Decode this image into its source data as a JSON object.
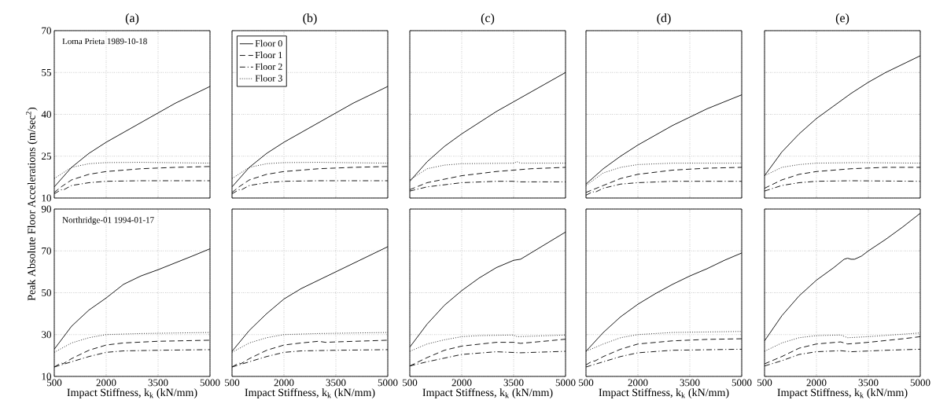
{
  "chart_data": [
    {
      "type": "line",
      "title": "(a)",
      "annotations": [
        "Loma Prieta 1989-10-18"
      ],
      "xlim": [
        500,
        5000
      ],
      "ylim": [
        10,
        70
      ],
      "xticks": [
        500,
        2000,
        3500,
        5000
      ],
      "yticks": [
        10,
        25,
        40,
        55,
        70
      ],
      "grid": true,
      "tick_labels": "y",
      "series": [
        {
          "color": "#000000",
          "line_style": "solid",
          "x": [
            500,
            1000,
            1500,
            2000,
            2500,
            3000,
            3500,
            4000,
            4500,
            5000
          ],
          "values": [
            14,
            21,
            26,
            30,
            33.5,
            37,
            40.5,
            44,
            47,
            50
          ]
        },
        {
          "color": "#000000",
          "line_style": "dashed",
          "x": [
            500,
            700,
            1000,
            1500,
            2000,
            3000,
            4000,
            5000
          ],
          "values": [
            12,
            14,
            16.5,
            18.5,
            19.5,
            20.5,
            21,
            21.3
          ]
        },
        {
          "color": "#000000",
          "line_style": "dashdot",
          "x": [
            500,
            700,
            750,
            1000,
            1500,
            2000,
            3000,
            5000
          ],
          "values": [
            11.5,
            13,
            12.8,
            14.5,
            15.5,
            16,
            16.2,
            16.2
          ]
        },
        {
          "color": "#000000",
          "line_style": "dotted",
          "x": [
            500,
            750,
            1000,
            1500,
            2000,
            3000,
            5000
          ],
          "values": [
            17,
            19,
            21,
            22.3,
            22.7,
            22.8,
            22.5
          ]
        }
      ]
    },
    {
      "type": "line",
      "title": "(b)",
      "xlim": [
        500,
        5000
      ],
      "ylim": [
        10,
        70
      ],
      "xticks": [
        500,
        2000,
        3500,
        5000
      ],
      "yticks": [
        10,
        25,
        40,
        55,
        70
      ],
      "grid": true,
      "tick_labels": false,
      "legend": "top left",
      "series": [
        {
          "name": "Floor 0",
          "color": "#000000",
          "line_style": "solid",
          "x": [
            500,
            1000,
            1500,
            2000,
            2500,
            3000,
            3500,
            4000,
            4500,
            5000
          ],
          "values": [
            14,
            21,
            26,
            30,
            33.5,
            37,
            40.5,
            44,
            47,
            50
          ]
        },
        {
          "name": "Floor 1",
          "color": "#000000",
          "line_style": "dashed",
          "x": [
            500,
            700,
            1000,
            1500,
            2000,
            3000,
            4000,
            5000
          ],
          "values": [
            12,
            14,
            16.5,
            18.5,
            19.5,
            20.5,
            21,
            21.3
          ]
        },
        {
          "name": "Floor 2",
          "color": "#000000",
          "line_style": "dashdot",
          "x": [
            500,
            700,
            750,
            1000,
            1500,
            2000,
            3000,
            5000
          ],
          "values": [
            11.5,
            13,
            12.8,
            14.5,
            15.5,
            16,
            16.2,
            16.2
          ]
        },
        {
          "name": "Floor 3",
          "color": "#000000",
          "line_style": "dotted",
          "x": [
            500,
            750,
            1000,
            1500,
            2000,
            3000,
            5000
          ],
          "values": [
            17,
            19,
            21,
            22.3,
            22.7,
            22.8,
            22.5
          ]
        }
      ]
    },
    {
      "type": "line",
      "title": "(c)",
      "xlim": [
        500,
        5000
      ],
      "ylim": [
        10,
        70
      ],
      "xticks": [
        500,
        2000,
        3500,
        5000
      ],
      "yticks": [
        10,
        25,
        40,
        55,
        70
      ],
      "grid": true,
      "tick_labels": false,
      "series": [
        {
          "color": "#000000",
          "line_style": "solid",
          "x": [
            500,
            1000,
            1500,
            2000,
            2500,
            3000,
            3500,
            4000,
            4500,
            5000
          ],
          "values": [
            16,
            23,
            28.5,
            33,
            37,
            41,
            44.5,
            48,
            51.5,
            55
          ]
        },
        {
          "color": "#000000",
          "line_style": "dashed",
          "x": [
            500,
            1000,
            2000,
            3000,
            4000,
            5000
          ],
          "values": [
            13,
            15.5,
            18,
            19.5,
            20.5,
            21
          ]
        },
        {
          "color": "#000000",
          "line_style": "dashdot",
          "x": [
            500,
            1000,
            2000,
            3000,
            3500,
            3700,
            5000
          ],
          "values": [
            12.5,
            14,
            15.5,
            16,
            16,
            15.8,
            15.8
          ]
        },
        {
          "color": "#000000",
          "line_style": "dotted",
          "x": [
            500,
            1000,
            1500,
            2000,
            3500,
            3600,
            3700,
            5000
          ],
          "values": [
            16.5,
            20.5,
            21.8,
            22.3,
            22.5,
            23,
            22.5,
            22.5
          ]
        }
      ]
    },
    {
      "type": "line",
      "title": "(d)",
      "xlim": [
        500,
        5000
      ],
      "ylim": [
        10,
        70
      ],
      "xticks": [
        500,
        2000,
        3500,
        5000
      ],
      "yticks": [
        10,
        25,
        40,
        55,
        70
      ],
      "grid": true,
      "tick_labels": false,
      "series": [
        {
          "color": "#000000",
          "line_style": "solid",
          "x": [
            500,
            1000,
            1500,
            2000,
            2500,
            3000,
            3500,
            4000,
            4500,
            5000
          ],
          "values": [
            15,
            20.5,
            25,
            29,
            32.5,
            36,
            39,
            42,
            44.5,
            47
          ]
        },
        {
          "color": "#000000",
          "line_style": "dashed",
          "x": [
            500,
            1000,
            1500,
            2000,
            3000,
            4000,
            5000
          ],
          "values": [
            12,
            14.5,
            17,
            18.5,
            20,
            20.7,
            21
          ]
        },
        {
          "color": "#000000",
          "line_style": "dashdot",
          "x": [
            500,
            700,
            750,
            1000,
            1500,
            2000,
            3000,
            5000
          ],
          "values": [
            11,
            12.3,
            12,
            13.5,
            15,
            15.5,
            16,
            16
          ]
        },
        {
          "color": "#000000",
          "line_style": "dotted",
          "x": [
            500,
            1000,
            1500,
            2000,
            3000,
            5000
          ],
          "values": [
            14.5,
            19,
            21,
            22,
            22.5,
            22.5
          ]
        }
      ]
    },
    {
      "type": "line",
      "title": "(e)",
      "xlim": [
        500,
        5000
      ],
      "ylim": [
        10,
        70
      ],
      "xticks": [
        500,
        2000,
        3500,
        5000
      ],
      "yticks": [
        10,
        25,
        40,
        55,
        70
      ],
      "grid": true,
      "tick_labels": false,
      "series": [
        {
          "color": "#000000",
          "line_style": "solid",
          "x": [
            500,
            1000,
            1500,
            2000,
            2500,
            3000,
            3500,
            4000,
            4500,
            5000
          ],
          "values": [
            18,
            26.5,
            33,
            38.5,
            43,
            47.5,
            51.5,
            55,
            58,
            61
          ]
        },
        {
          "color": "#000000",
          "line_style": "dashed",
          "x": [
            500,
            1000,
            1500,
            2000,
            3000,
            4000,
            5000
          ],
          "values": [
            13.5,
            16.5,
            18.5,
            19.5,
            20.5,
            21,
            21
          ]
        },
        {
          "color": "#000000",
          "line_style": "dashdot",
          "x": [
            500,
            1000,
            1500,
            2000,
            3000,
            5000
          ],
          "values": [
            12.5,
            14.5,
            15.5,
            16,
            16.2,
            16
          ]
        },
        {
          "color": "#000000",
          "line_style": "dotted",
          "x": [
            500,
            1000,
            1500,
            2000,
            3200,
            5000
          ],
          "values": [
            18,
            21,
            22,
            22.5,
            22.7,
            22.5
          ]
        }
      ]
    },
    {
      "type": "line",
      "ylabel": "Peak Absolute Floor Accelerations (m/sec$^{2}$)",
      "xlabel": "Impact Stiffness, k$_{k}$ (kN/mm)",
      "annotations": [
        "Northridge-01 1994-01-17"
      ],
      "xlim": [
        500,
        5000
      ],
      "ylim": [
        10,
        90
      ],
      "xticks": [
        500,
        2000,
        3500,
        5000
      ],
      "yticks": [
        10,
        30,
        50,
        70,
        90
      ],
      "grid": true,
      "series": [
        {
          "color": "#000000",
          "line_style": "solid",
          "x": [
            500,
            1000,
            1500,
            2000,
            2500,
            3000,
            3500,
            4000,
            4500,
            5000
          ],
          "values": [
            23,
            34,
            41.7,
            47.5,
            54,
            58,
            61,
            64.3,
            67.6,
            71
          ]
        },
        {
          "color": "#000000",
          "line_style": "dashed",
          "x": [
            500,
            700,
            750,
            1000,
            1500,
            2000,
            2500,
            3500,
            5000
          ],
          "values": [
            14.5,
            16.5,
            16,
            18.5,
            22.5,
            25,
            26,
            26.8,
            27.3
          ]
        },
        {
          "color": "#000000",
          "line_style": "dashdot",
          "x": [
            500,
            1000,
            1500,
            2000,
            2500,
            3500,
            5000
          ],
          "values": [
            14.5,
            17,
            19.5,
            21.5,
            22.2,
            22.5,
            22.8
          ]
        },
        {
          "color": "#000000",
          "line_style": "dotted",
          "x": [
            500,
            1000,
            1500,
            2000,
            3000,
            5000
          ],
          "values": [
            21.5,
            26,
            28.5,
            30,
            30.5,
            31
          ]
        }
      ]
    },
    {
      "type": "line",
      "xlabel": "Impact Stiffness, k$_{k}$ (kN/mm)",
      "xlim": [
        500,
        5000
      ],
      "ylim": [
        10,
        90
      ],
      "xticks": [
        500,
        2000,
        3500,
        5000
      ],
      "yticks": [
        10,
        30,
        50,
        70,
        90
      ],
      "grid": true,
      "tick_labels": "x",
      "series": [
        {
          "color": "#000000",
          "line_style": "solid",
          "x": [
            500,
            1000,
            1500,
            2000,
            2500,
            3000,
            3500,
            4000,
            4500,
            5000
          ],
          "values": [
            22,
            32,
            40,
            47,
            52,
            56,
            60,
            64,
            68,
            72
          ]
        },
        {
          "color": "#000000",
          "line_style": "dashed",
          "x": [
            500,
            700,
            750,
            1000,
            1500,
            2000,
            2500,
            3000,
            3200,
            3500,
            5000
          ],
          "values": [
            14.5,
            16.5,
            16,
            18.5,
            22.5,
            25,
            26,
            26.8,
            26.3,
            26.5,
            27.3
          ]
        },
        {
          "color": "#000000",
          "line_style": "dashdot",
          "x": [
            500,
            1000,
            1500,
            2000,
            2500,
            3500,
            5000
          ],
          "values": [
            14.5,
            17,
            19.5,
            21.5,
            22.2,
            22.5,
            22.8
          ]
        },
        {
          "color": "#000000",
          "line_style": "dotted",
          "x": [
            500,
            1000,
            1500,
            2000,
            3000,
            5000
          ],
          "values": [
            21.5,
            26,
            28.5,
            30,
            30.5,
            31
          ]
        }
      ]
    },
    {
      "type": "line",
      "xlabel": "Impact Stiffness, k$_{k}$ (kN/mm)",
      "xlim": [
        500,
        5000
      ],
      "ylim": [
        10,
        90
      ],
      "xticks": [
        500,
        2000,
        3500,
        5000
      ],
      "yticks": [
        10,
        30,
        50,
        70,
        90
      ],
      "grid": true,
      "tick_labels": "x",
      "series": [
        {
          "color": "#000000",
          "line_style": "solid",
          "x": [
            500,
            1000,
            1500,
            2000,
            2500,
            3000,
            3500,
            3700,
            4000,
            4500,
            5000
          ],
          "values": [
            24,
            35,
            44,
            51,
            57,
            62,
            65.5,
            66,
            69,
            74,
            79
          ]
        },
        {
          "color": "#000000",
          "line_style": "dashed",
          "x": [
            500,
            1000,
            1500,
            2000,
            3000,
            3500,
            3700,
            4500,
            5000
          ],
          "values": [
            15,
            19,
            22.5,
            24.5,
            26.3,
            26.3,
            25.8,
            27,
            27.8
          ]
        },
        {
          "color": "#000000",
          "line_style": "dashdot",
          "x": [
            500,
            1000,
            2000,
            3000,
            3700,
            5000
          ],
          "values": [
            15,
            17,
            20.5,
            21.8,
            21.3,
            22
          ]
        },
        {
          "color": "#000000",
          "line_style": "dotted",
          "x": [
            500,
            1000,
            1500,
            2000,
            2500,
            3500,
            3600,
            4000,
            5000
          ],
          "values": [
            22,
            25.5,
            27.5,
            29,
            29.5,
            29.8,
            29,
            29.2,
            29.8
          ]
        }
      ]
    },
    {
      "type": "line",
      "xlabel": "Impact Stiffness, k$_{k}$ (kN/mm)",
      "xlim": [
        500,
        5000
      ],
      "ylim": [
        10,
        90
      ],
      "xticks": [
        500,
        2000,
        3500,
        5000
      ],
      "yticks": [
        10,
        30,
        50,
        70,
        90
      ],
      "grid": true,
      "tick_labels": "x",
      "series": [
        {
          "color": "#000000",
          "line_style": "solid",
          "x": [
            500,
            1000,
            1500,
            2000,
            2500,
            3000,
            3500,
            4000,
            4500,
            5000
          ],
          "values": [
            22,
            31,
            38.5,
            44.5,
            49.5,
            54,
            58,
            61.5,
            65.5,
            69
          ]
        },
        {
          "color": "#000000",
          "line_style": "dashed",
          "x": [
            500,
            700,
            750,
            1000,
            1500,
            2000,
            3000,
            4000,
            5000
          ],
          "values": [
            15.5,
            17.5,
            17.3,
            19.5,
            23,
            25.5,
            27,
            27.7,
            28
          ]
        },
        {
          "color": "#000000",
          "line_style": "dashdot",
          "x": [
            500,
            1000,
            1500,
            2000,
            3000,
            5000
          ],
          "values": [
            14.5,
            17,
            19.5,
            21.3,
            22.5,
            23
          ]
        },
        {
          "color": "#000000",
          "line_style": "dotted",
          "x": [
            500,
            1000,
            1500,
            2000,
            3000,
            5000
          ],
          "values": [
            22,
            25.5,
            28.5,
            30,
            31,
            31.5
          ]
        }
      ]
    },
    {
      "type": "line",
      "xlabel": "Impact Stiffness, k$_{k}$ (kN/mm)",
      "xlim": [
        500,
        5000
      ],
      "ylim": [
        10,
        90
      ],
      "xticks": [
        500,
        2000,
        3500,
        5000
      ],
      "yticks": [
        10,
        30,
        50,
        70,
        90
      ],
      "grid": true,
      "tick_labels": "x",
      "series": [
        {
          "color": "#000000",
          "line_style": "solid",
          "x": [
            500,
            1000,
            1500,
            2000,
            2500,
            2800,
            2900,
            3000,
            3100,
            3300,
            3500,
            4000,
            4500,
            5000
          ],
          "values": [
            27,
            39,
            48.5,
            56,
            62,
            66,
            66.5,
            66,
            66,
            67.5,
            70,
            75.5,
            81.5,
            88
          ]
        },
        {
          "color": "#000000",
          "line_style": "dashed",
          "x": [
            500,
            1000,
            1500,
            2000,
            2700,
            2900,
            3500,
            4500,
            5000
          ],
          "values": [
            16,
            19.5,
            23.5,
            25.5,
            26.5,
            25.5,
            26.3,
            28,
            29
          ]
        },
        {
          "color": "#000000",
          "line_style": "dashdot",
          "x": [
            500,
            1000,
            1500,
            2000,
            2700,
            3000,
            4000,
            5000
          ],
          "values": [
            15,
            17.5,
            20.5,
            21.8,
            22.3,
            21.8,
            22.5,
            23
          ]
        },
        {
          "color": "#000000",
          "line_style": "dotted",
          "x": [
            500,
            1000,
            1500,
            2000,
            2700,
            2900,
            3500,
            5000
          ],
          "values": [
            22,
            26,
            28.5,
            29.5,
            29.8,
            28.5,
            29,
            30.8
          ]
        }
      ]
    }
  ]
}
